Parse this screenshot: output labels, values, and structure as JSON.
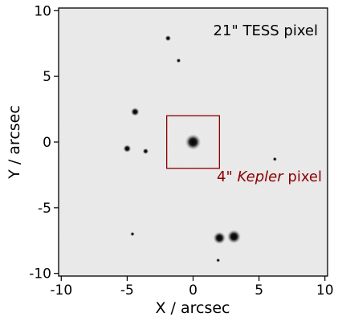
{
  "image": {
    "xlabel": "X / arcsec",
    "ylabel": "Y / arcsec",
    "xlim": [
      -10.2,
      10.2
    ],
    "ylim": [
      -10.2,
      10.2
    ],
    "x_ticks": [
      {
        "value": -10,
        "label": "-10"
      },
      {
        "value": -5,
        "label": "-5"
      },
      {
        "value": 0,
        "label": "0"
      },
      {
        "value": 5,
        "label": "5"
      },
      {
        "value": 10,
        "label": "10"
      }
    ],
    "y_ticks": [
      {
        "value": 10,
        "label": "10"
      },
      {
        "value": 5,
        "label": "5"
      },
      {
        "value": 0,
        "label": "0"
      },
      {
        "value": -5,
        "label": "-5"
      },
      {
        "value": -10,
        "label": "-10"
      }
    ],
    "background_color": "#ececec",
    "tess_label": "21\" TESS pixel",
    "kepler_prefix": "4\"",
    "kepler_italic": "Kepler",
    "kepler_suffix": "pixel",
    "kepler_box": {
      "x0": -2,
      "x1": 2,
      "y0": -2,
      "y1": 2,
      "color": "#8b0000"
    },
    "stars": [
      {
        "x": 0.0,
        "y": 0.0,
        "brightness": 1.0
      },
      {
        "x": 3.1,
        "y": -7.2,
        "brightness": 0.85
      },
      {
        "x": 2.0,
        "y": -7.3,
        "brightness": 0.75
      },
      {
        "x": -4.4,
        "y": 2.3,
        "brightness": 0.45
      },
      {
        "x": -5.0,
        "y": -0.5,
        "brightness": 0.4
      },
      {
        "x": -3.6,
        "y": -0.7,
        "brightness": 0.25
      },
      {
        "x": -1.9,
        "y": 7.9,
        "brightness": 0.25
      },
      {
        "x": -1.1,
        "y": 6.2,
        "brightness": 0.15
      },
      {
        "x": 6.2,
        "y": -1.3,
        "brightness": 0.12
      },
      {
        "x": -4.6,
        "y": -7.0,
        "brightness": 0.12
      },
      {
        "x": 1.9,
        "y": -9.0,
        "brightness": 0.1
      }
    ]
  }
}
